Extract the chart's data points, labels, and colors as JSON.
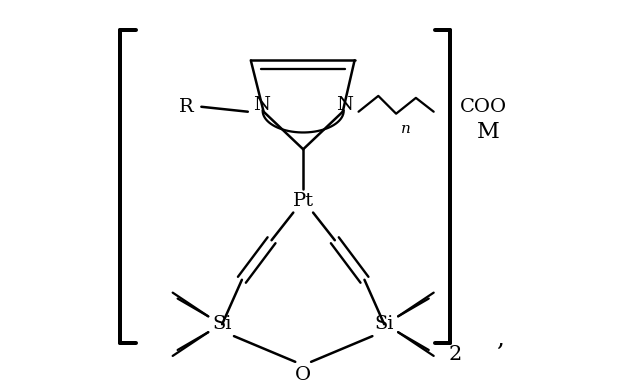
{
  "background_color": "#ffffff",
  "line_color": "#000000",
  "line_width": 1.8,
  "figure_width": 6.38,
  "figure_height": 3.85,
  "dpi": 100,
  "labels": {
    "N_left": "N",
    "N_right": "N",
    "R": "R",
    "Pt": "Pt",
    "Si_left": "Si",
    "Si_right": "Si",
    "O": "O",
    "COO": "COO",
    "n": "n",
    "M": "M",
    "subscript_2": "2",
    "comma": ","
  },
  "font_size_main": 14,
  "font_size_sub": 11,
  "font_size_M": 16
}
